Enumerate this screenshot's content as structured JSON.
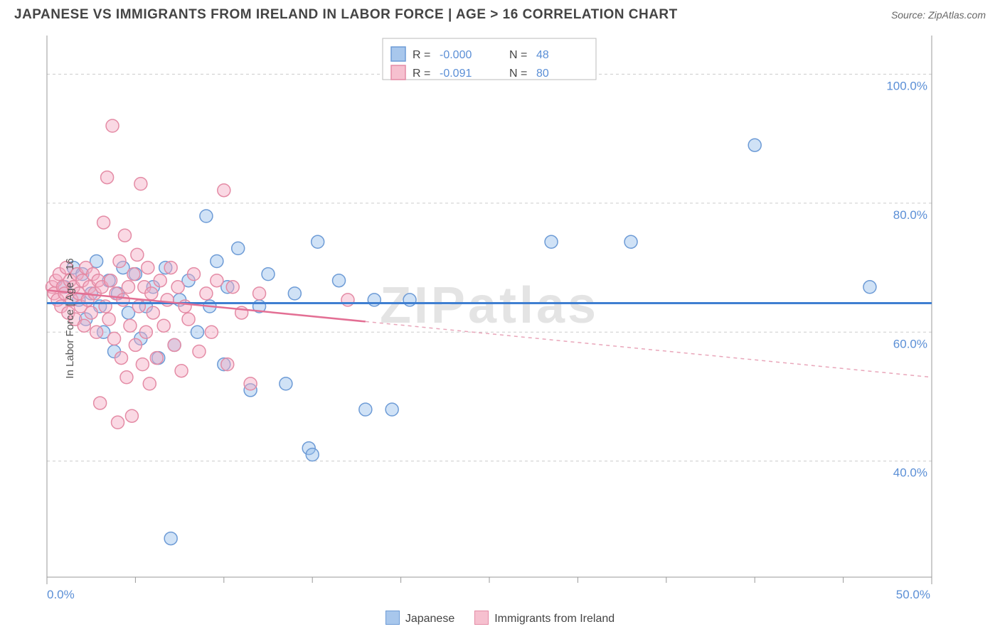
{
  "header": {
    "title": "JAPANESE VS IMMIGRANTS FROM IRELAND IN LABOR FORCE | AGE > 16 CORRELATION CHART",
    "source_prefix": "Source: ",
    "source": "ZipAtlas.com"
  },
  "ylabel": "In Labor Force | Age > 16",
  "watermark": "ZIPatlas",
  "chart": {
    "type": "scatter",
    "xlim": [
      0,
      50
    ],
    "ylim": [
      22,
      106
    ],
    "x_ticks": [
      0,
      50
    ],
    "x_tick_labels": [
      "0.0%",
      "50.0%"
    ],
    "x_minor_ticks": [
      5,
      10,
      15,
      20,
      25,
      30,
      35,
      40,
      45
    ],
    "y_ticks": [
      40,
      60,
      80,
      100
    ],
    "y_tick_labels": [
      "40.0%",
      "60.0%",
      "80.0%",
      "100.0%"
    ],
    "background_color": "#ffffff",
    "grid_color": "#cccccc",
    "point_radius": 9,
    "colors": {
      "blue_fill": "#a8c7ec",
      "blue_stroke": "#6d9bd6",
      "blue_trend": "#3f7fd1",
      "pink_fill": "#f6c0cf",
      "pink_stroke": "#e48ba5",
      "pink_trend": "#e36f94",
      "tick_text": "#5b8fd6"
    },
    "series": [
      {
        "name": "Japanese",
        "color_key": "blue",
        "R": "-0.000",
        "N": "48",
        "trend": {
          "y_at_x0": 64.5,
          "y_at_x50": 64.5,
          "solid_until_x": 50
        },
        "points": [
          [
            1.0,
            67
          ],
          [
            1.5,
            70
          ],
          [
            1.8,
            65
          ],
          [
            2.0,
            69
          ],
          [
            2.2,
            62
          ],
          [
            2.5,
            66
          ],
          [
            2.8,
            71
          ],
          [
            3.0,
            64
          ],
          [
            3.2,
            60
          ],
          [
            3.5,
            68
          ],
          [
            3.8,
            57
          ],
          [
            4.0,
            66
          ],
          [
            4.3,
            70
          ],
          [
            4.6,
            63
          ],
          [
            5.0,
            69
          ],
          [
            5.3,
            59
          ],
          [
            5.6,
            64
          ],
          [
            6.0,
            67
          ],
          [
            6.3,
            56
          ],
          [
            6.7,
            70
          ],
          [
            7.0,
            28
          ],
          [
            7.2,
            58
          ],
          [
            7.5,
            65
          ],
          [
            8.0,
            68
          ],
          [
            8.5,
            60
          ],
          [
            9.0,
            78
          ],
          [
            9.2,
            64
          ],
          [
            9.6,
            71
          ],
          [
            10.0,
            55
          ],
          [
            10.2,
            67
          ],
          [
            10.8,
            73
          ],
          [
            11.5,
            51
          ],
          [
            12.0,
            64
          ],
          [
            12.5,
            69
          ],
          [
            13.5,
            52
          ],
          [
            14.0,
            66
          ],
          [
            14.8,
            42
          ],
          [
            15.0,
            41
          ],
          [
            15.3,
            74
          ],
          [
            16.5,
            68
          ],
          [
            18.0,
            48
          ],
          [
            18.5,
            65
          ],
          [
            19.5,
            48
          ],
          [
            20.5,
            65
          ],
          [
            28.5,
            74
          ],
          [
            33.0,
            74
          ],
          [
            40.0,
            89
          ],
          [
            46.5,
            67
          ]
        ]
      },
      {
        "name": "Immigrants from Ireland",
        "color_key": "pink",
        "R": "-0.091",
        "N": "80",
        "trend": {
          "y_at_x0": 66.5,
          "y_at_x50": 53.0,
          "solid_until_x": 18
        },
        "points": [
          [
            0.3,
            67
          ],
          [
            0.4,
            66
          ],
          [
            0.5,
            68
          ],
          [
            0.6,
            65
          ],
          [
            0.7,
            69
          ],
          [
            0.8,
            64
          ],
          [
            0.9,
            67
          ],
          [
            1.0,
            66
          ],
          [
            1.1,
            70
          ],
          [
            1.2,
            63
          ],
          [
            1.3,
            68
          ],
          [
            1.4,
            65
          ],
          [
            1.5,
            67
          ],
          [
            1.6,
            62
          ],
          [
            1.7,
            69
          ],
          [
            1.8,
            66
          ],
          [
            1.9,
            64
          ],
          [
            2.0,
            68
          ],
          [
            2.1,
            61
          ],
          [
            2.2,
            70
          ],
          [
            2.3,
            65
          ],
          [
            2.4,
            67
          ],
          [
            2.5,
            63
          ],
          [
            2.6,
            69
          ],
          [
            2.7,
            66
          ],
          [
            2.8,
            60
          ],
          [
            2.9,
            68
          ],
          [
            3.0,
            49
          ],
          [
            3.1,
            67
          ],
          [
            3.2,
            77
          ],
          [
            3.3,
            64
          ],
          [
            3.4,
            84
          ],
          [
            3.5,
            62
          ],
          [
            3.6,
            68
          ],
          [
            3.7,
            92
          ],
          [
            3.8,
            59
          ],
          [
            3.9,
            66
          ],
          [
            4.0,
            46
          ],
          [
            4.1,
            71
          ],
          [
            4.2,
            56
          ],
          [
            4.3,
            65
          ],
          [
            4.4,
            75
          ],
          [
            4.5,
            53
          ],
          [
            4.6,
            67
          ],
          [
            4.7,
            61
          ],
          [
            4.8,
            47
          ],
          [
            4.9,
            69
          ],
          [
            5.0,
            58
          ],
          [
            5.1,
            72
          ],
          [
            5.2,
            64
          ],
          [
            5.3,
            83
          ],
          [
            5.4,
            55
          ],
          [
            5.5,
            67
          ],
          [
            5.6,
            60
          ],
          [
            5.7,
            70
          ],
          [
            5.8,
            52
          ],
          [
            5.9,
            66
          ],
          [
            6.0,
            63
          ],
          [
            6.2,
            56
          ],
          [
            6.4,
            68
          ],
          [
            6.6,
            61
          ],
          [
            6.8,
            65
          ],
          [
            7.0,
            70
          ],
          [
            7.2,
            58
          ],
          [
            7.4,
            67
          ],
          [
            7.6,
            54
          ],
          [
            7.8,
            64
          ],
          [
            8.0,
            62
          ],
          [
            8.3,
            69
          ],
          [
            8.6,
            57
          ],
          [
            9.0,
            66
          ],
          [
            9.3,
            60
          ],
          [
            9.6,
            68
          ],
          [
            10.0,
            82
          ],
          [
            10.2,
            55
          ],
          [
            10.5,
            67
          ],
          [
            11.0,
            63
          ],
          [
            11.5,
            52
          ],
          [
            12.0,
            66
          ],
          [
            17.0,
            65
          ]
        ]
      }
    ]
  },
  "stats_legend": {
    "r_label": "R =",
    "n_label": "N ="
  },
  "bottom_legend": {
    "a": "Japanese",
    "b": "Immigrants from Ireland"
  }
}
